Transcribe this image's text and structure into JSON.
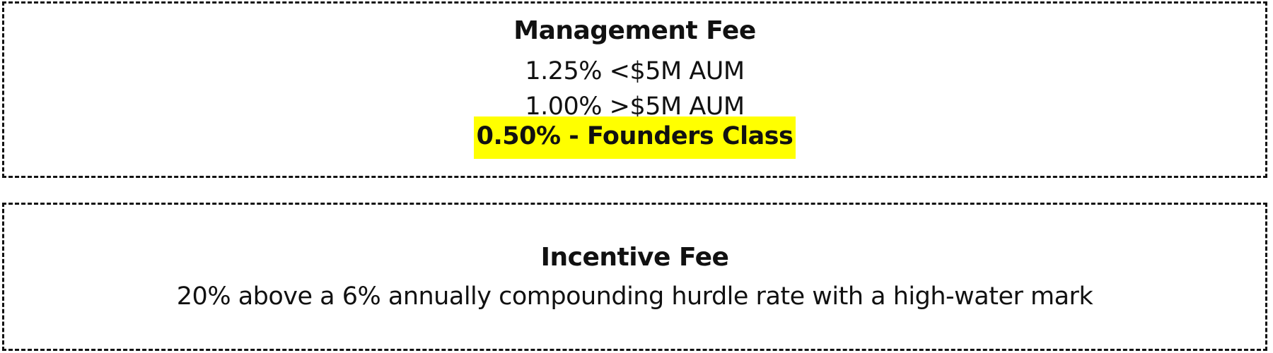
{
  "management_fee": {
    "title": "Management Fee",
    "lines": [
      "1.25% <$5M AUM",
      "1.00% >$5M AUM"
    ],
    "highlight": "0.50% - Founders Class",
    "highlight_color": "#ffff00"
  },
  "incentive_fee": {
    "title": "Incentive Fee",
    "description": "20% above a 6% annually compounding hurdle rate with a high-water mark"
  }
}
